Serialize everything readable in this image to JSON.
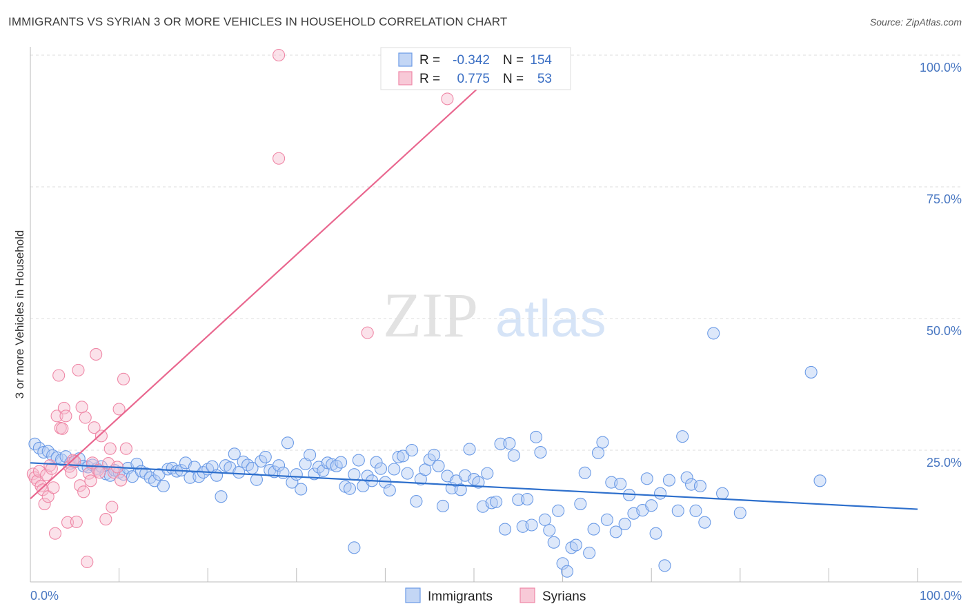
{
  "title": "IMMIGRANTS VS SYRIAN 3 OR MORE VEHICLES IN HOUSEHOLD CORRELATION CHART",
  "source": "Source: ZipAtlas.com",
  "watermark": {
    "zip": "ZIP",
    "atlas": "atlas"
  },
  "legend": {
    "r_label": "R =",
    "n_label": "N =",
    "items": [
      {
        "name": "Immigrants",
        "r": "-0.342",
        "n": "154",
        "color": "#6a9ae6"
      },
      {
        "name": "Syrians",
        "r": "0.775",
        "n": "53",
        "color": "#ef87a6"
      }
    ]
  },
  "chart_data": {
    "type": "scatter",
    "title": "IMMIGRANTS VS SYRIAN 3 OR MORE VEHICLES IN HOUSEHOLD CORRELATION CHART",
    "xlabel": "",
    "ylabel": "3 or more Vehicles in Household",
    "xlim": [
      0,
      100
    ],
    "ylim": [
      0,
      100
    ],
    "x_tick_labels": [
      "0.0%",
      "100.0%"
    ],
    "y_tick_labels": [
      "25.0%",
      "50.0%",
      "75.0%",
      "100.0%"
    ],
    "y_ticks": [
      25,
      50,
      75,
      100
    ],
    "x_minor_ticks": [
      10,
      20,
      30,
      40,
      50,
      60,
      70,
      80,
      90
    ],
    "series": [
      {
        "name": "Immigrants",
        "color": "#6a9ae6",
        "trend": {
          "x": [
            0,
            100
          ],
          "y": [
            22.6,
            13.8
          ],
          "color": "#2d6fcc"
        },
        "points": [
          [
            0.5,
            26.2
          ],
          [
            1,
            25.4
          ],
          [
            1.5,
            24.6
          ],
          [
            2,
            24.8
          ],
          [
            2.5,
            24
          ],
          [
            3,
            23.6
          ],
          [
            3.5,
            23.2
          ],
          [
            4,
            23.8
          ],
          [
            4.5,
            22.5
          ],
          [
            5,
            22.8
          ],
          [
            5.5,
            23.4
          ],
          [
            6,
            22
          ],
          [
            6.5,
            21.8
          ],
          [
            7,
            22.2
          ],
          [
            7.5,
            21.5
          ],
          [
            8,
            21.9
          ],
          [
            8.5,
            20.5
          ],
          [
            9,
            20.2
          ],
          [
            9.5,
            21.2
          ],
          [
            10,
            20.8
          ],
          [
            10.5,
            20.4
          ],
          [
            11,
            21.6
          ],
          [
            11.5,
            20
          ],
          [
            12,
            22.4
          ],
          [
            12.5,
            21
          ],
          [
            13,
            20.6
          ],
          [
            13.5,
            19.8
          ],
          [
            14,
            19.2
          ],
          [
            14.5,
            20.4
          ],
          [
            15,
            18.2
          ],
          [
            15.5,
            21.4
          ],
          [
            16,
            21.6
          ],
          [
            16.5,
            21
          ],
          [
            17,
            21.2
          ],
          [
            17.5,
            22.6
          ],
          [
            18,
            19.8
          ],
          [
            18.5,
            21.8
          ],
          [
            19,
            20
          ],
          [
            19.5,
            20.8
          ],
          [
            20,
            21.4
          ],
          [
            20.5,
            21.9
          ],
          [
            21,
            20.2
          ],
          [
            21.5,
            16.2
          ],
          [
            22,
            22.1
          ],
          [
            22.5,
            21.7
          ],
          [
            23,
            24.3
          ],
          [
            23.5,
            20.8
          ],
          [
            24,
            22.8
          ],
          [
            24.5,
            22.2
          ],
          [
            25,
            21.6
          ],
          [
            25.5,
            19.4
          ],
          [
            26,
            22.9
          ],
          [
            26.5,
            23.7
          ],
          [
            27,
            21.2
          ],
          [
            27.5,
            20.9
          ],
          [
            28,
            22.1
          ],
          [
            28.5,
            20.7
          ],
          [
            29,
            26.4
          ],
          [
            29.5,
            18.9
          ],
          [
            30,
            20.4
          ],
          [
            30.5,
            17.6
          ],
          [
            31,
            22.4
          ],
          [
            31.5,
            24.1
          ],
          [
            32,
            20.5
          ],
          [
            32.5,
            21.8
          ],
          [
            33,
            21.1
          ],
          [
            33.5,
            22.6
          ],
          [
            34,
            22.3
          ],
          [
            34.5,
            22
          ],
          [
            35,
            22.7
          ],
          [
            35.5,
            18.1
          ],
          [
            36,
            17.7
          ],
          [
            36.5,
            20.4
          ],
          [
            37,
            23.1
          ],
          [
            37.5,
            18.2
          ],
          [
            38,
            20.1
          ],
          [
            38.5,
            19.2
          ],
          [
            39,
            22.7
          ],
          [
            39.5,
            21.5
          ],
          [
            40,
            18.9
          ],
          [
            40.5,
            17.4
          ],
          [
            41,
            21.4
          ],
          [
            41.5,
            23.7
          ],
          [
            42,
            23.9
          ],
          [
            42.5,
            20.6
          ],
          [
            43,
            25
          ],
          [
            43.5,
            15.3
          ],
          [
            44,
            19.5
          ],
          [
            44.5,
            21.3
          ],
          [
            45,
            23.2
          ],
          [
            45.5,
            24.1
          ],
          [
            46,
            22
          ],
          [
            46.5,
            14.4
          ],
          [
            47,
            20.1
          ],
          [
            47.5,
            17.8
          ],
          [
            48,
            19.2
          ],
          [
            48.5,
            17.5
          ],
          [
            49,
            20.2
          ],
          [
            49.5,
            25.2
          ],
          [
            50,
            19.5
          ],
          [
            50.5,
            18.9
          ],
          [
            51,
            14.3
          ],
          [
            51.5,
            20.6
          ],
          [
            52,
            15
          ],
          [
            52.5,
            15.2
          ],
          [
            53,
            26.2
          ],
          [
            53.5,
            10
          ],
          [
            54,
            26.3
          ],
          [
            54.5,
            24
          ],
          [
            55,
            15.6
          ],
          [
            55.5,
            10.5
          ],
          [
            56,
            15.7
          ],
          [
            56.5,
            10.8
          ],
          [
            57,
            27.5
          ],
          [
            57.5,
            24.6
          ],
          [
            58,
            11.8
          ],
          [
            58.5,
            9.8
          ],
          [
            59,
            7.5
          ],
          [
            59.5,
            13.5
          ],
          [
            60,
            3.5
          ],
          [
            60.5,
            2
          ],
          [
            61,
            6.5
          ],
          [
            61.5,
            7
          ],
          [
            62,
            14.8
          ],
          [
            62.5,
            20.7
          ],
          [
            63,
            5.5
          ],
          [
            63.5,
            10
          ],
          [
            64,
            24.5
          ],
          [
            64.5,
            26.5
          ],
          [
            65,
            11.8
          ],
          [
            65.5,
            18.9
          ],
          [
            66,
            9.5
          ],
          [
            66.5,
            18.6
          ],
          [
            67,
            11
          ],
          [
            67.5,
            16.5
          ],
          [
            68,
            13
          ],
          [
            69,
            13.6
          ],
          [
            69.5,
            19.6
          ],
          [
            70,
            14.5
          ],
          [
            70.5,
            9.2
          ],
          [
            71,
            16.8
          ],
          [
            71.5,
            3.1
          ],
          [
            72,
            19.3
          ],
          [
            73,
            13.5
          ],
          [
            73.5,
            27.6
          ],
          [
            74,
            19.8
          ],
          [
            74.5,
            18.5
          ],
          [
            75,
            13.5
          ],
          [
            75.5,
            18.2
          ],
          [
            76,
            11.3
          ],
          [
            77,
            47.2
          ],
          [
            78,
            16.8
          ],
          [
            80,
            13.1
          ],
          [
            88,
            39.8
          ],
          [
            89,
            19.2
          ],
          [
            36.5,
            6.5
          ]
        ]
      },
      {
        "name": "Syrians",
        "color": "#ef87a6",
        "trend": {
          "x": [
            0,
            50.5
          ],
          "y": [
            15.8,
            93.8
          ],
          "color": "#e9678f"
        },
        "points": [
          [
            0.3,
            20.5
          ],
          [
            0.5,
            19.8
          ],
          [
            0.8,
            19.2
          ],
          [
            1,
            21
          ],
          [
            1.2,
            18.2
          ],
          [
            1.4,
            17.5
          ],
          [
            1.6,
            14.8
          ],
          [
            1.8,
            20.3
          ],
          [
            2,
            16.2
          ],
          [
            2.2,
            22.1
          ],
          [
            2.4,
            21.5
          ],
          [
            2.6,
            17.9
          ],
          [
            2.8,
            9.2
          ],
          [
            3,
            31.5
          ],
          [
            3.2,
            39.2
          ],
          [
            3.4,
            29.2
          ],
          [
            3.6,
            29.1
          ],
          [
            3.8,
            33
          ],
          [
            4,
            31.5
          ],
          [
            4.2,
            11.3
          ],
          [
            4.4,
            21.9
          ],
          [
            4.6,
            20.8
          ],
          [
            4.8,
            23.1
          ],
          [
            5,
            22.9
          ],
          [
            5.2,
            11.4
          ],
          [
            5.4,
            40.2
          ],
          [
            5.6,
            18.3
          ],
          [
            5.8,
            33.2
          ],
          [
            6,
            17.1
          ],
          [
            6.2,
            31.2
          ],
          [
            6.4,
            3.8
          ],
          [
            6.6,
            20.6
          ],
          [
            6.8,
            19.2
          ],
          [
            7,
            22.6
          ],
          [
            7.2,
            29.3
          ],
          [
            7.4,
            43.2
          ],
          [
            7.6,
            21.2
          ],
          [
            7.8,
            20.8
          ],
          [
            8,
            27.7
          ],
          [
            8.5,
            11.9
          ],
          [
            8.8,
            22.5
          ],
          [
            9,
            25.3
          ],
          [
            9.2,
            14.2
          ],
          [
            9.4,
            20.8
          ],
          [
            9.8,
            21.8
          ],
          [
            10,
            32.8
          ],
          [
            10.2,
            19.3
          ],
          [
            10.5,
            38.5
          ],
          [
            10.8,
            25.3
          ],
          [
            28,
            100
          ],
          [
            28,
            80.4
          ],
          [
            38,
            47.3
          ],
          [
            47,
            91.7
          ]
        ]
      }
    ]
  }
}
